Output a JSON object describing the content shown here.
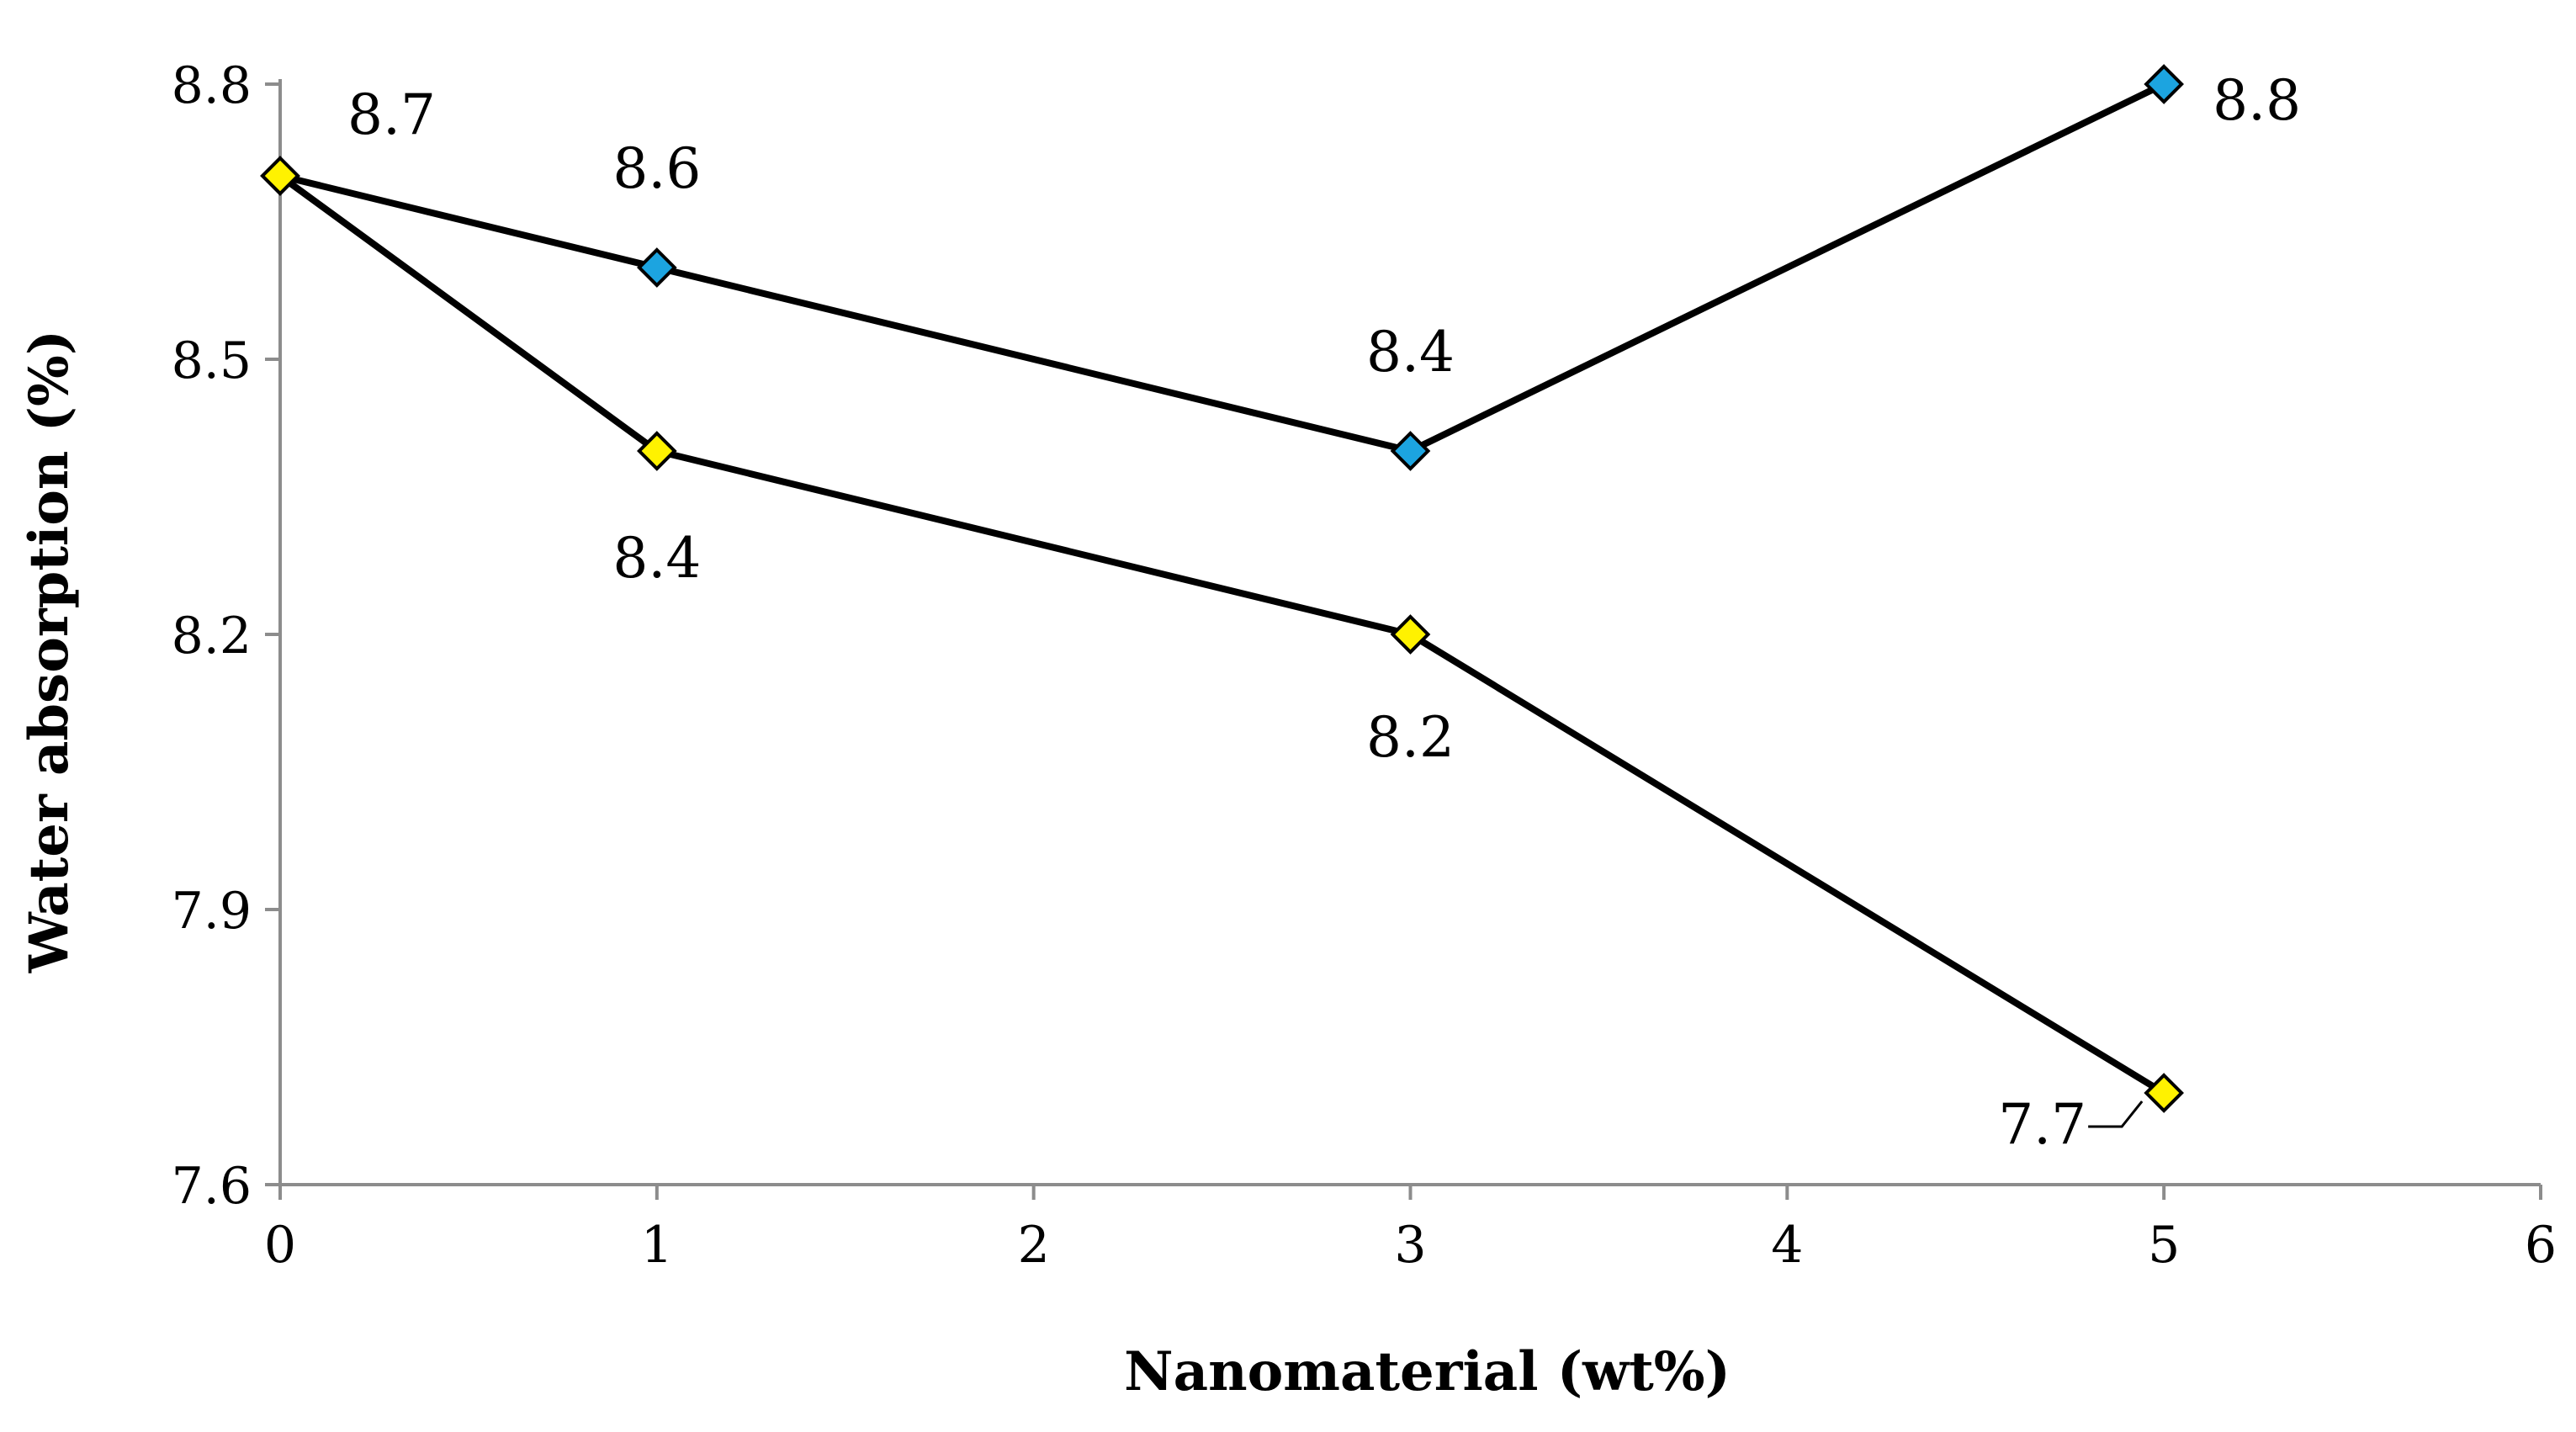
{
  "chart_data": {
    "type": "line",
    "title": "",
    "xlabel": "Nanomaterial (wt%)",
    "ylabel": "Water absorption (%)",
    "xlim": [
      0,
      6
    ],
    "ylim": [
      7.6,
      8.8
    ],
    "x_ticks": [
      "0",
      "1",
      "2",
      "3",
      "4",
      "5",
      "6"
    ],
    "y_ticks": [
      "7.6",
      "7.9",
      "8.2",
      "8.5",
      "8.8"
    ],
    "legend": "none",
    "grid": false,
    "series": [
      {
        "name": "blue-series",
        "marker": "diamond",
        "marker_color": "#1CA4E0",
        "line_color": "#000000",
        "x": [
          0,
          1,
          3,
          5
        ],
        "values": [
          8.7,
          8.6,
          8.4,
          8.8
        ],
        "labels": [
          "",
          "8.6",
          "8.4",
          "8.8"
        ]
      },
      {
        "name": "yellow-series",
        "marker": "diamond",
        "marker_color": "#FFF200",
        "line_color": "#000000",
        "x": [
          0,
          1,
          3,
          5
        ],
        "values": [
          8.7,
          8.4,
          8.2,
          7.7
        ],
        "labels": [
          "8.7",
          "8.4",
          "8.2",
          "7.7"
        ]
      }
    ]
  }
}
